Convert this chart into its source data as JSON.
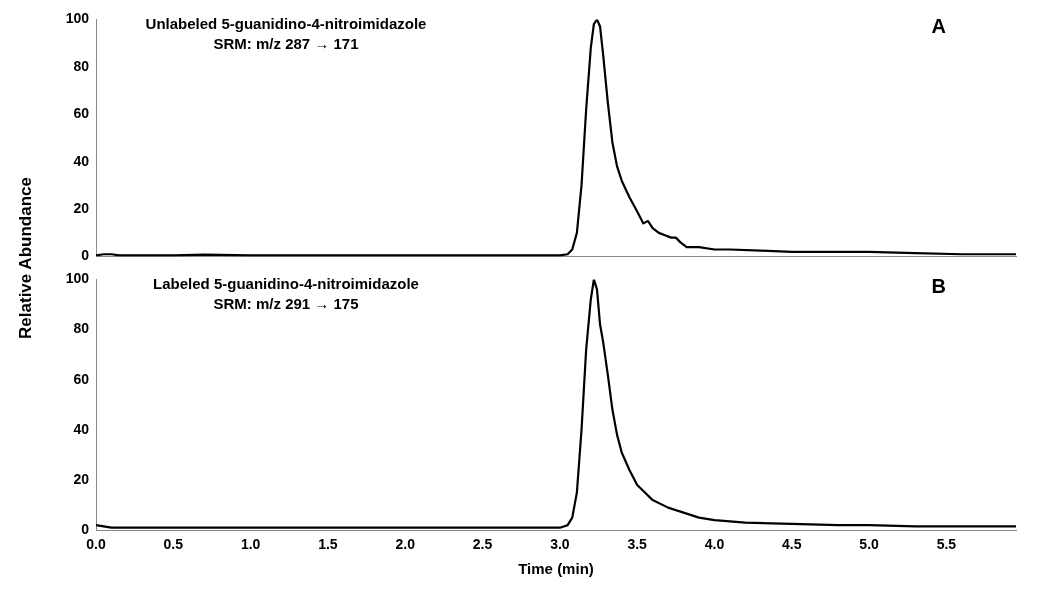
{
  "chart_data": [
    {
      "type": "line",
      "title": "A",
      "annotations": [
        "Unlabeled 5-guanidino-4-nitroimidazole",
        "SRM: m/z 287 → 171"
      ],
      "ylabel": "Relative Abundance",
      "tick_labels": "y",
      "xlim": [
        0,
        5.95
      ],
      "ylim": [
        0,
        100
      ],
      "yticks": [
        0,
        20,
        40,
        60,
        80,
        100
      ],
      "series": [
        {
          "color": "#000000",
          "x": [
            0,
            0.05,
            0.1,
            0.15,
            0.2,
            0.5,
            0.7,
            1.0,
            1.3,
            1.6,
            2.0,
            2.4,
            2.8,
            3.0,
            3.05,
            3.08,
            3.11,
            3.14,
            3.17,
            3.2,
            3.22,
            3.24,
            3.26,
            3.28,
            3.31,
            3.34,
            3.37,
            3.4,
            3.45,
            3.5,
            3.54,
            3.57,
            3.6,
            3.64,
            3.68,
            3.72,
            3.75,
            3.78,
            3.82,
            3.9,
            4.0,
            4.1,
            4.3,
            4.5,
            4.8,
            5.0,
            5.3,
            5.6,
            5.95
          ],
          "values": [
            0.5,
            1,
            1,
            0.5,
            0.5,
            0.5,
            0.8,
            0.5,
            0.5,
            0.5,
            0.5,
            0.5,
            0.5,
            0.5,
            1,
            3,
            10,
            30,
            62,
            88,
            98,
            100,
            97,
            85,
            65,
            48,
            38,
            32,
            25,
            19,
            14,
            15,
            12,
            10,
            9,
            8,
            8,
            6,
            4,
            4,
            3,
            3,
            2.5,
            2,
            2,
            2,
            1.5,
            1,
            1
          ]
        }
      ]
    },
    {
      "type": "line",
      "title": "B",
      "annotations": [
        "Labeled 5-guanidino-4-nitroimidazole",
        "SRM: m/z 291 → 175"
      ],
      "xlabel": "Time (min)",
      "xlim": [
        0,
        5.95
      ],
      "xticks": [
        {
          "value": 0,
          "label": "0.0"
        },
        0.5,
        {
          "value": 1,
          "label": "1.0"
        },
        1.5,
        {
          "value": 2,
          "label": "2.0"
        },
        2.5,
        {
          "value": 3,
          "label": "3.0"
        },
        3.5,
        {
          "value": 4,
          "label": "4.0"
        },
        4.5,
        {
          "value": 5,
          "label": "5.0"
        },
        5.5
      ],
      "ylim": [
        0,
        100
      ],
      "yticks": [
        0,
        20,
        40,
        60,
        80,
        100
      ],
      "series": [
        {
          "color": "#000000",
          "x": [
            0,
            0.05,
            0.1,
            0.3,
            0.6,
            1.0,
            1.5,
            2.0,
            2.5,
            2.9,
            3.0,
            3.05,
            3.08,
            3.11,
            3.14,
            3.17,
            3.2,
            3.22,
            3.24,
            3.26,
            3.28,
            3.31,
            3.34,
            3.37,
            3.4,
            3.45,
            3.5,
            3.55,
            3.6,
            3.7,
            3.8,
            3.9,
            4.0,
            4.2,
            4.5,
            4.8,
            5.0,
            5.3,
            5.6,
            5.95
          ],
          "values": [
            2,
            1.5,
            1,
            1,
            1,
            1,
            1,
            1,
            1,
            1,
            1,
            2,
            5,
            15,
            40,
            72,
            92,
            100,
            96,
            82,
            75,
            62,
            48,
            38,
            31,
            24,
            18,
            15,
            12,
            9,
            7,
            5,
            4,
            3,
            2.5,
            2,
            2,
            1.5,
            1.5,
            1.5
          ]
        }
      ]
    }
  ]
}
